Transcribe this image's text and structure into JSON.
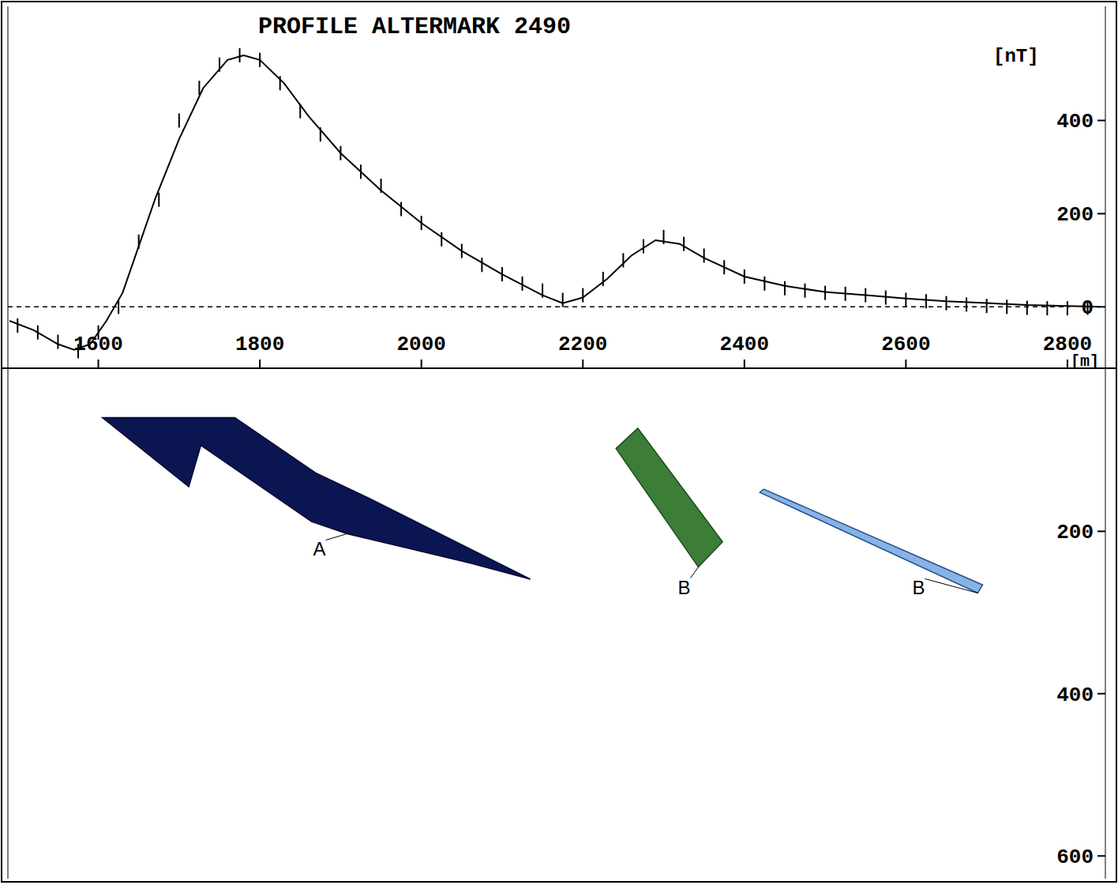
{
  "chart_data": [
    {
      "type": "line",
      "title": "PROFILE ALTERMARK 2490",
      "xlabel": "[m]",
      "ylabel": "[nT]",
      "xlim": [
        1488,
        2847
      ],
      "ylim": [
        -130,
        645
      ],
      "xticks": [
        1600,
        1800,
        2000,
        2200,
        2400,
        2600,
        2800
      ],
      "yticks": [
        0,
        200,
        400
      ],
      "grid": false,
      "series": [
        {
          "type": "scatter",
          "marker": "tick",
          "color": "#000000",
          "x": [
            1500,
            1525,
            1550,
            1575,
            1600,
            1625,
            1650,
            1675,
            1700,
            1725,
            1750,
            1775,
            1800,
            1825,
            1850,
            1875,
            1900,
            1925,
            1950,
            1975,
            2000,
            2025,
            2050,
            2075,
            2100,
            2125,
            2150,
            2175,
            2200,
            2225,
            2250,
            2275,
            2300,
            2325,
            2350,
            2375,
            2400,
            2425,
            2450,
            2475,
            2500,
            2525,
            2550,
            2575,
            2600,
            2625,
            2650,
            2675,
            2700,
            2725,
            2750,
            2775,
            2800,
            2825
          ],
          "values": [
            -40,
            -55,
            -75,
            -95,
            -55,
            0,
            140,
            230,
            400,
            470,
            520,
            540,
            530,
            480,
            420,
            370,
            330,
            290,
            260,
            210,
            180,
            145,
            120,
            90,
            70,
            50,
            35,
            15,
            25,
            60,
            100,
            130,
            150,
            135,
            110,
            85,
            65,
            50,
            40,
            35,
            30,
            28,
            25,
            20,
            15,
            12,
            8,
            5,
            2,
            0,
            -2,
            -3,
            -3,
            -2
          ]
        },
        {
          "type": "line",
          "line_style": "solid",
          "color": "#000000",
          "x": [
            1490,
            1520,
            1550,
            1570,
            1590,
            1610,
            1630,
            1650,
            1670,
            1700,
            1730,
            1760,
            1780,
            1800,
            1830,
            1860,
            1900,
            1950,
            2000,
            2050,
            2100,
            2150,
            2175,
            2200,
            2230,
            2260,
            2290,
            2320,
            2350,
            2400,
            2450,
            2500,
            2550,
            2600,
            2650,
            2700,
            2750,
            2800,
            2840
          ],
          "values": [
            -30,
            -50,
            -80,
            -92,
            -80,
            -30,
            30,
            130,
            230,
            360,
            470,
            530,
            540,
            530,
            480,
            410,
            330,
            250,
            180,
            120,
            70,
            25,
            8,
            20,
            60,
            110,
            143,
            135,
            105,
            65,
            45,
            32,
            25,
            18,
            12,
            8,
            4,
            2,
            0
          ]
        }
      ]
    },
    {
      "type": "section",
      "xlim": [
        1488,
        2847
      ],
      "ylim": [
        0,
        628
      ],
      "yticks": [
        200,
        400,
        600
      ],
      "tick_labels": "y",
      "bodies": [
        {
          "label": "A",
          "color": "#0b1552",
          "x": [
            1605,
            1769,
            1869,
            1935,
            2135,
            2060,
            1908,
            1864,
            1727,
            1712
          ],
          "values": [
            60,
            60,
            128,
            159,
            259,
            239,
            203,
            188,
            94,
            145
          ]
        },
        {
          "label": "B",
          "color": "#3c7d38",
          "x": [
            2241,
            2268,
            2373,
            2343
          ],
          "values": [
            98,
            73,
            213,
            244
          ]
        },
        {
          "label": "B",
          "color": "#86b4e6",
          "x": [
            2419,
            2424,
            2695,
            2689
          ],
          "values": [
            152,
            148,
            266,
            276
          ]
        }
      ]
    }
  ]
}
